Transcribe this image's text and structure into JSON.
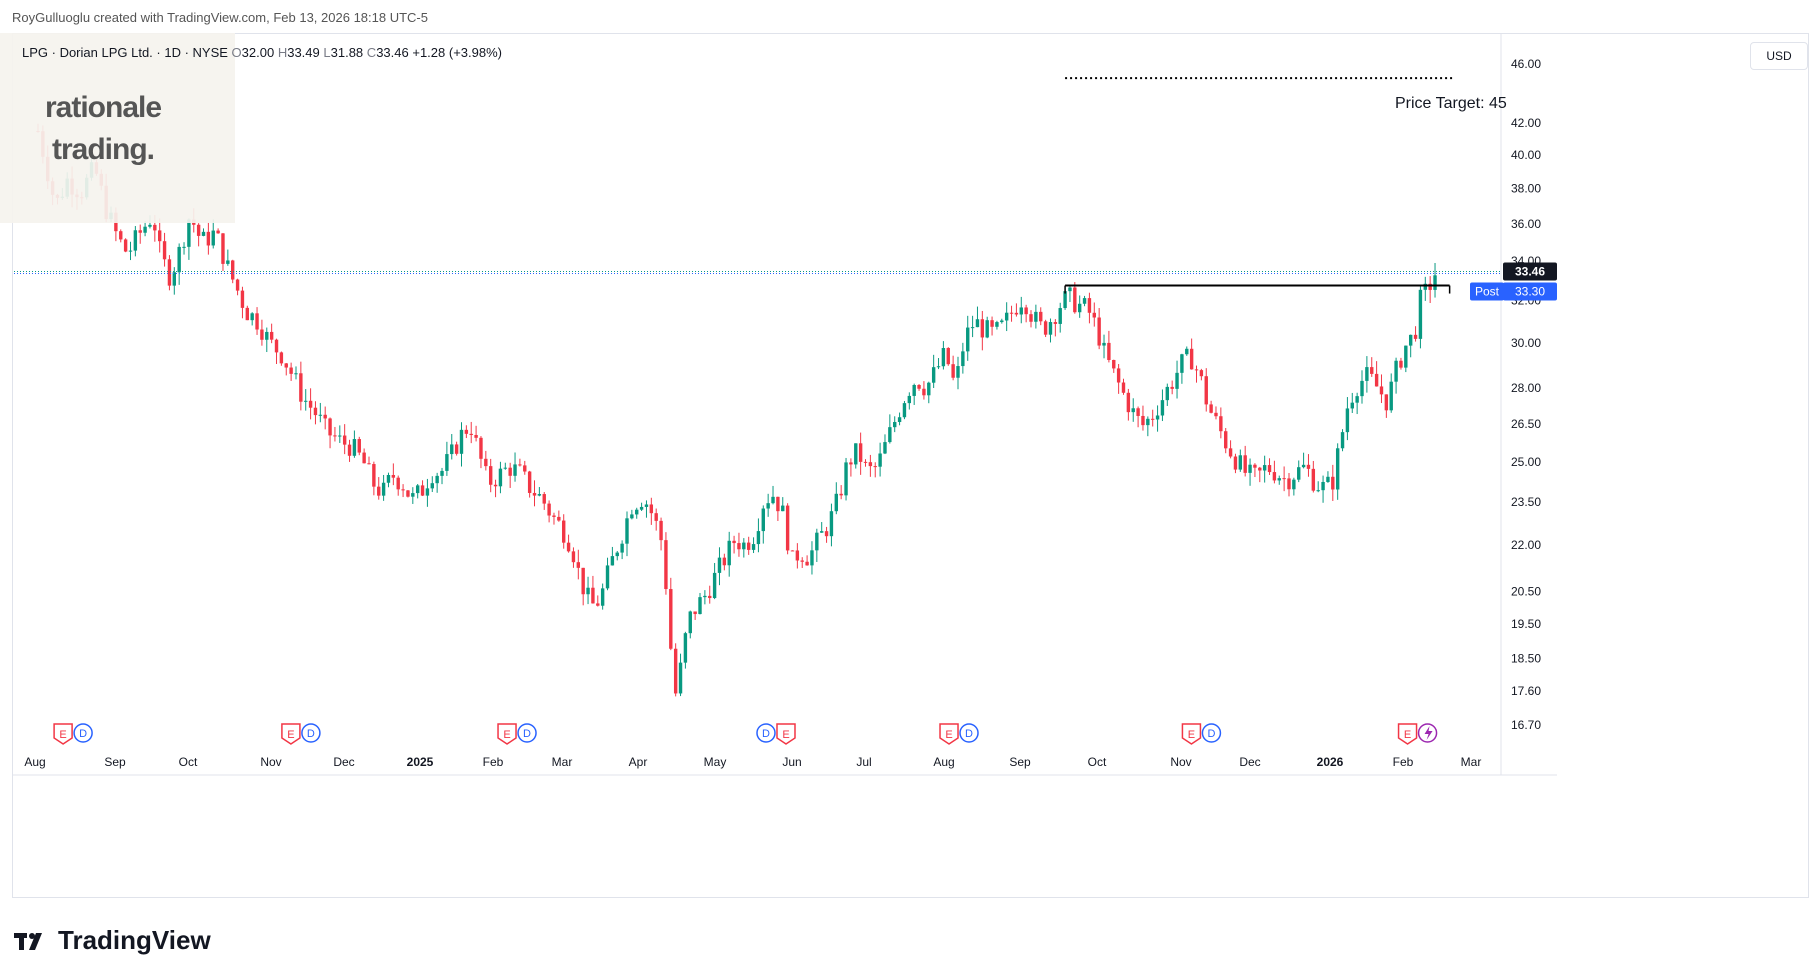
{
  "header": {
    "attribution": "RoyGulluoglu created with TradingView.com, Feb 13, 2026 18:18 UTC-5"
  },
  "legend": {
    "symbol": "LPG · Dorian LPG Ltd. · 1D · NYSE",
    "o_label": "O",
    "o": "32.00",
    "h_label": "H",
    "h": "33.49",
    "l_label": "L",
    "l": "31.88",
    "c_label": "C",
    "c": "33.46",
    "change": "+1.28 (+3.98%)"
  },
  "watermark": {
    "line1": "rationale",
    "line2": "trading."
  },
  "currency": "USD",
  "brand": "TradingView",
  "annotation": {
    "target_label": "Price Target: 45"
  },
  "colors": {
    "up": "#089981",
    "down": "#f23645",
    "axis_text": "#131722",
    "last_price_bg": "#131722",
    "post_bg": "#2962ff"
  },
  "badges": {
    "last_price": "33.46",
    "post_label": "Post",
    "post_price": "33.30"
  },
  "chart_data": {
    "type": "candlestick",
    "scale": "log",
    "y_ticks": [
      46.0,
      42.0,
      40.0,
      38.0,
      36.0,
      34.0,
      32.0,
      30.0,
      28.0,
      26.5,
      25.0,
      23.5,
      22.0,
      20.5,
      19.5,
      18.5,
      17.6,
      16.7
    ],
    "y_tick_labels": [
      "46.00",
      "42.00",
      "40.00",
      "38.00",
      "36.00",
      "34.00",
      "32.00",
      "30.00",
      "28.00",
      "26.50",
      "25.00",
      "23.50",
      "22.00",
      "20.50",
      "19.50",
      "18.50",
      "17.60",
      "16.70"
    ],
    "x_labels": [
      "Aug",
      "Sep",
      "Oct",
      "Nov",
      "Dec",
      "2025",
      "Feb",
      "Mar",
      "Apr",
      "May",
      "Jun",
      "Jul",
      "Aug",
      "Sep",
      "Oct",
      "Nov",
      "Dec",
      "2026",
      "Feb",
      "Mar"
    ],
    "x_label_bold": [
      false,
      false,
      false,
      false,
      false,
      true,
      false,
      false,
      false,
      false,
      false,
      false,
      false,
      false,
      false,
      false,
      false,
      true,
      false,
      false
    ],
    "path_points": [
      [
        0,
        41.5
      ],
      [
        8,
        39.5
      ],
      [
        18,
        37.0
      ],
      [
        30,
        38.5
      ],
      [
        44,
        37.8
      ],
      [
        58,
        39.2
      ],
      [
        70,
        36.8
      ],
      [
        82,
        35.2
      ],
      [
        92,
        34.4
      ],
      [
        106,
        35.6
      ],
      [
        118,
        36.5
      ],
      [
        126,
        34.2
      ],
      [
        136,
        33.2
      ],
      [
        146,
        34.6
      ],
      [
        156,
        36.5
      ],
      [
        168,
        35.0
      ],
      [
        182,
        35.5
      ],
      [
        196,
        33.5
      ],
      [
        206,
        32.4
      ],
      [
        214,
        31.5
      ],
      [
        226,
        31.0
      ],
      [
        238,
        30.0
      ],
      [
        250,
        29.5
      ],
      [
        262,
        28.5
      ],
      [
        272,
        27.6
      ],
      [
        284,
        27.0
      ],
      [
        296,
        26.2
      ],
      [
        310,
        25.8
      ],
      [
        322,
        25.6
      ],
      [
        334,
        25.0
      ],
      [
        344,
        24.2
      ],
      [
        354,
        23.8
      ],
      [
        364,
        24.5
      ],
      [
        374,
        24.2
      ],
      [
        384,
        23.6
      ],
      [
        394,
        23.9
      ],
      [
        404,
        24.6
      ],
      [
        414,
        24.6
      ],
      [
        424,
        25.2
      ],
      [
        434,
        26.0
      ],
      [
        444,
        26.5
      ],
      [
        452,
        25.4
      ],
      [
        462,
        24.2
      ],
      [
        474,
        24.5
      ],
      [
        484,
        24.8
      ],
      [
        494,
        24.6
      ],
      [
        506,
        24.0
      ],
      [
        518,
        23.6
      ],
      [
        528,
        23.0
      ],
      [
        538,
        22.6
      ],
      [
        548,
        22.0
      ],
      [
        556,
        21.0
      ],
      [
        564,
        20.3
      ],
      [
        572,
        20.0
      ],
      [
        580,
        20.5
      ],
      [
        590,
        21.5
      ],
      [
        600,
        22.4
      ],
      [
        610,
        23.4
      ],
      [
        622,
        23.7
      ],
      [
        632,
        23.0
      ],
      [
        642,
        22.0
      ],
      [
        648,
        19.5
      ],
      [
        654,
        17.4
      ],
      [
        660,
        18.2
      ],
      [
        668,
        19.6
      ],
      [
        676,
        20.0
      ],
      [
        686,
        20.4
      ],
      [
        696,
        21.0
      ],
      [
        706,
        21.6
      ],
      [
        716,
        22.2
      ],
      [
        726,
        22.0
      ],
      [
        736,
        22.4
      ],
      [
        746,
        23.6
      ],
      [
        756,
        23.8
      ],
      [
        766,
        23.0
      ],
      [
        774,
        21.4
      ],
      [
        782,
        21.8
      ],
      [
        792,
        21.6
      ],
      [
        802,
        22.2
      ],
      [
        812,
        22.7
      ],
      [
        822,
        23.6
      ],
      [
        832,
        25.0
      ],
      [
        842,
        25.4
      ],
      [
        852,
        24.6
      ],
      [
        862,
        24.8
      ],
      [
        872,
        25.8
      ],
      [
        882,
        26.8
      ],
      [
        892,
        27.8
      ],
      [
        902,
        28.4
      ],
      [
        912,
        28.0
      ],
      [
        922,
        28.7
      ],
      [
        932,
        29.5
      ],
      [
        942,
        28.0
      ],
      [
        952,
        30.2
      ],
      [
        962,
        31.0
      ],
      [
        972,
        30.6
      ],
      [
        982,
        30.4
      ],
      [
        992,
        30.8
      ],
      [
        1002,
        31.6
      ],
      [
        1012,
        32.2
      ],
      [
        1022,
        31.2
      ],
      [
        1032,
        30.6
      ],
      [
        1042,
        31.2
      ],
      [
        1050,
        31.8
      ],
      [
        1058,
        32.2
      ],
      [
        1068,
        31.8
      ],
      [
        1078,
        31.6
      ],
      [
        1088,
        30.6
      ],
      [
        1096,
        29.4
      ],
      [
        1106,
        28.5
      ],
      [
        1114,
        27.8
      ],
      [
        1124,
        27.0
      ],
      [
        1134,
        26.4
      ],
      [
        1144,
        26.8
      ],
      [
        1154,
        27.5
      ],
      [
        1164,
        28.2
      ],
      [
        1174,
        29.0
      ],
      [
        1184,
        29.4
      ],
      [
        1194,
        28.4
      ],
      [
        1202,
        27.2
      ],
      [
        1212,
        26.4
      ],
      [
        1222,
        25.6
      ],
      [
        1232,
        25.0
      ],
      [
        1242,
        24.5
      ],
      [
        1252,
        24.4
      ],
      [
        1262,
        24.8
      ],
      [
        1272,
        24.6
      ],
      [
        1282,
        24.3
      ],
      [
        1292,
        24.6
      ],
      [
        1302,
        24.8
      ],
      [
        1312,
        24.2
      ],
      [
        1322,
        24.0
      ],
      [
        1330,
        24.3
      ],
      [
        1338,
        25.8
      ],
      [
        1346,
        27.4
      ],
      [
        1356,
        28.2
      ],
      [
        1366,
        28.5
      ],
      [
        1376,
        28.0
      ],
      [
        1386,
        27.4
      ],
      [
        1394,
        28.6
      ],
      [
        1404,
        29.8
      ],
      [
        1414,
        30.4
      ],
      [
        1420,
        32.0
      ],
      [
        1428,
        32.6
      ],
      [
        1436,
        33.46
      ]
    ],
    "last_close": 33.46,
    "post_price": 33.3,
    "resistance": {
      "value": 32.75,
      "from_bar": 1055,
      "to_bar": 1450
    },
    "target": {
      "value": 45,
      "from_bar": 1055,
      "to_bar": 1455
    },
    "events": [
      {
        "bar": 34,
        "codes": [
          "E",
          "D"
        ]
      },
      {
        "bar": 268,
        "codes": [
          "E",
          "D"
        ]
      },
      {
        "bar": 490,
        "codes": [
          "E",
          "D"
        ]
      },
      {
        "bar": 756,
        "codes": [
          "D",
          "E"
        ]
      },
      {
        "bar": 944,
        "codes": [
          "E",
          "D"
        ]
      },
      {
        "bar": 1193,
        "codes": [
          "E",
          "D"
        ]
      },
      {
        "bar": 1415,
        "codes": [
          "E",
          "S"
        ]
      }
    ]
  }
}
